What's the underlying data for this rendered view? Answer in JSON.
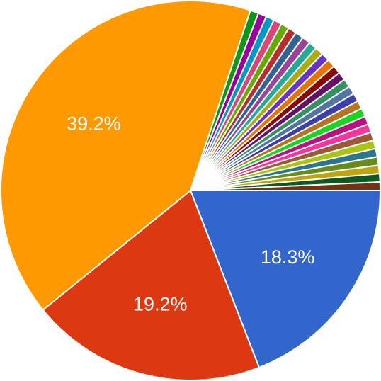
{
  "chart_data": {
    "type": "pie",
    "title": "",
    "slices": [
      {
        "value": 18.3,
        "label": "18.3%",
        "color": "#3366cc"
      },
      {
        "value": 19.2,
        "label": "19.2%",
        "color": "#dc3912"
      },
      {
        "value": 39.2,
        "label": "39.2%",
        "color": "#ff9900"
      },
      {
        "value": 0.68,
        "label": "",
        "color": "#109618"
      },
      {
        "value": 0.68,
        "label": "",
        "color": "#990099"
      },
      {
        "value": 0.68,
        "label": "",
        "color": "#0099c6"
      },
      {
        "value": 0.68,
        "label": "",
        "color": "#dd4477"
      },
      {
        "value": 0.68,
        "label": "",
        "color": "#66aa00"
      },
      {
        "value": 0.68,
        "label": "",
        "color": "#b82e2e"
      },
      {
        "value": 0.68,
        "label": "",
        "color": "#316395"
      },
      {
        "value": 0.68,
        "label": "",
        "color": "#994499"
      },
      {
        "value": 0.68,
        "label": "",
        "color": "#22aa99"
      },
      {
        "value": 0.68,
        "label": "",
        "color": "#aaaa11"
      },
      {
        "value": 0.68,
        "label": "",
        "color": "#6633cc"
      },
      {
        "value": 0.68,
        "label": "",
        "color": "#e67300"
      },
      {
        "value": 0.68,
        "label": "",
        "color": "#8b0707"
      },
      {
        "value": 0.68,
        "label": "",
        "color": "#651067"
      },
      {
        "value": 0.68,
        "label": "",
        "color": "#329262"
      },
      {
        "value": 0.68,
        "label": "",
        "color": "#5574a6"
      },
      {
        "value": 0.68,
        "label": "",
        "color": "#3b3eac"
      },
      {
        "value": 0.68,
        "label": "",
        "color": "#b77322"
      },
      {
        "value": 0.68,
        "label": "",
        "color": "#16d620"
      },
      {
        "value": 0.68,
        "label": "",
        "color": "#b91383"
      },
      {
        "value": 0.68,
        "label": "",
        "color": "#f4359e"
      },
      {
        "value": 0.68,
        "label": "",
        "color": "#9c5935"
      },
      {
        "value": 0.68,
        "label": "",
        "color": "#a9c413"
      },
      {
        "value": 0.68,
        "label": "",
        "color": "#2a778d"
      },
      {
        "value": 0.68,
        "label": "",
        "color": "#668d1c"
      },
      {
        "value": 0.68,
        "label": "",
        "color": "#bea413"
      },
      {
        "value": 0.68,
        "label": "",
        "color": "#0c5922"
      },
      {
        "value": 0.68,
        "label": "",
        "color": "#743411"
      }
    ]
  }
}
